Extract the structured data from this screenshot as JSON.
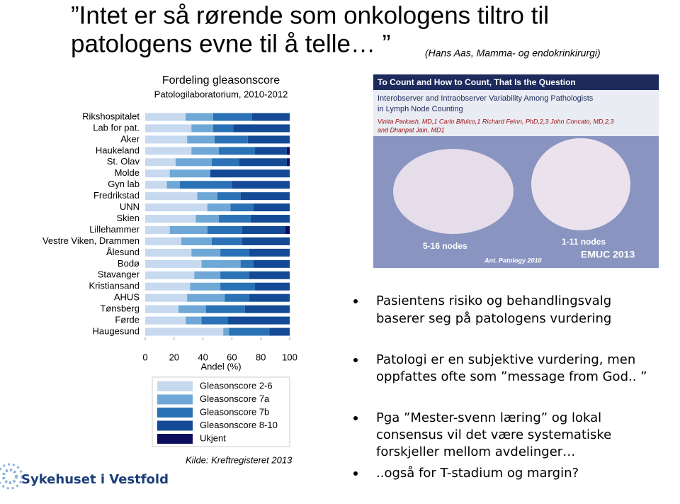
{
  "header": {
    "title_lines": [
      "”Intet er så rørende som onkologens tiltro til",
      "patologens evne til å telle… ”"
    ],
    "quote_source": "(Hans Aas, Mamma- og endokrinkirurgi)"
  },
  "chart_data": {
    "type": "bar",
    "orientation": "horizontal",
    "stacked": true,
    "title": "Fordeling gleasonscore",
    "subtitle": "Patologilaboratorium, 2010-2012",
    "xlabel": "Andel (%)",
    "source": "Kilde: Kreftregisteret 2013",
    "categories": [
      "Rikshospitalet",
      "Lab for pat.",
      "Aker",
      "Haukeland",
      "St. Olav",
      "Molde",
      "Gyn lab",
      "Fredrikstad",
      "UNN",
      "Skien",
      "Lillehammer",
      "Vestre Viken, Drammen",
      "Ålesund",
      "Bodø",
      "Stavanger",
      "Kristiansand",
      "AHUS",
      "Tønsberg",
      "Førde",
      "Haugesund"
    ],
    "series": [
      {
        "name": "Gleasonscore 2-6",
        "color": "#c6d9ef",
        "values": [
          28,
          32,
          29,
          32,
          21,
          17,
          15,
          36,
          43,
          35,
          17,
          25,
          32,
          39,
          34,
          31,
          29,
          23,
          28,
          54
        ]
      },
      {
        "name": "Gleasonscore 7a",
        "color": "#6fa8d6",
        "values": [
          19,
          15,
          19,
          19,
          25,
          28,
          9,
          14,
          16,
          16,
          26,
          21,
          20,
          27,
          18,
          21,
          26,
          19,
          11,
          4
        ]
      },
      {
        "name": "Gleasonscore 7b",
        "color": "#2a72b5",
        "values": [
          27,
          14,
          23,
          25,
          19,
          0,
          36,
          16,
          16,
          22,
          24,
          21,
          20,
          9,
          20,
          24,
          17,
          27,
          18,
          28
        ]
      },
      {
        "name": "Gleasonscore 8-10",
        "color": "#144a95",
        "values": [
          26,
          39,
          29,
          22,
          33,
          55,
          40,
          34,
          25,
          27,
          30,
          33,
          28,
          25,
          28,
          24,
          28,
          31,
          43,
          14
        ]
      },
      {
        "name": "Ukjent",
        "color": "#0a0e5c",
        "values": [
          0,
          0,
          0,
          2,
          2,
          0,
          0,
          0,
          0,
          0,
          3,
          0,
          0,
          0,
          0,
          0,
          0,
          0,
          0,
          0
        ]
      }
    ],
    "xlim": [
      0,
      100
    ],
    "xticks": [
      0,
      20,
      40,
      60,
      80,
      100
    ]
  },
  "figure": {
    "title": "To Count and How to Count, That Is the Question",
    "subtitle_lines": [
      "Interobserver and Intraobserver Variability Among Pathologists",
      "in Lymph Node Counting"
    ],
    "author_lines": [
      "Vinita Parkash, MD,1 Carlo Bifulco,1 Richard Feinn, PhD,2,3 John Concato, MD,2,3",
      "and Dhanpat Jain, MD1"
    ],
    "left_label": "5-16 nodes",
    "right_label": "1-11 nodes",
    "badge": "EMUC 2013",
    "citation": "Ant. Patology 2010"
  },
  "bullets": [
    [
      "Pasientens risiko og behandlingsvalg",
      "baserer seg på patologens vurdering"
    ],
    [
      "Patologi er en subjektive vurdering, men",
      "oppfattes ofte som ”message from God.. ”"
    ],
    [
      "Pga ”Mester-svenn læring” og lokal",
      "consensus vil det være systematiske",
      "forskjeller mellom avdelinger…"
    ],
    [
      "..også for T-stadium og margin?"
    ]
  ],
  "logo": "Sykehuset i Vestfold"
}
